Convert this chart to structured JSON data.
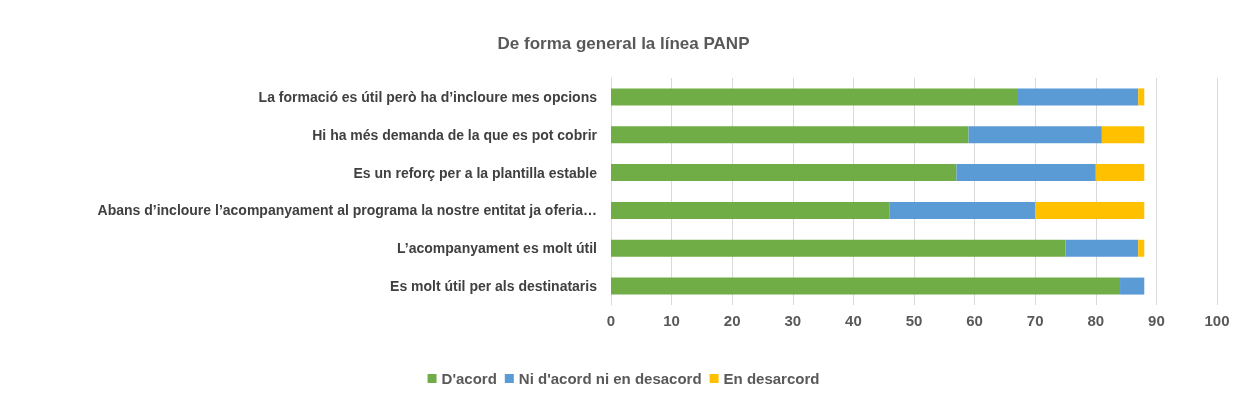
{
  "chart_data": {
    "type": "bar",
    "orientation": "horizontal",
    "stacked": true,
    "title": "De forma general la línea PANP",
    "categories": [
      "La formació es útil però ha d’incloure mes opcions",
      "Hi ha més demanda de la que es pot cobrir",
      "Es un reforç per a la plantilla estable",
      "Abans d’incloure l’acompanyament al programa la nostre entitat ja oferia…",
      "L’acompanyament es molt útil",
      "Es molt útil per als destinataris"
    ],
    "series": [
      {
        "name": "D'acord",
        "color": "#70ad47",
        "values": [
          67,
          59,
          57,
          46,
          75,
          84
        ]
      },
      {
        "name": "Ni d'acord ni en desacord",
        "color": "#5b9bd5",
        "values": [
          20,
          22,
          23,
          24,
          12,
          4
        ]
      },
      {
        "name": "En desarcord",
        "color": "#ffc000",
        "values": [
          1,
          7,
          8,
          18,
          1,
          0
        ]
      }
    ],
    "xlim": [
      0,
      100
    ],
    "xticks": [
      0,
      10,
      20,
      30,
      40,
      50,
      60,
      70,
      80,
      90,
      100
    ],
    "grid": "x",
    "legend": "bottom"
  }
}
